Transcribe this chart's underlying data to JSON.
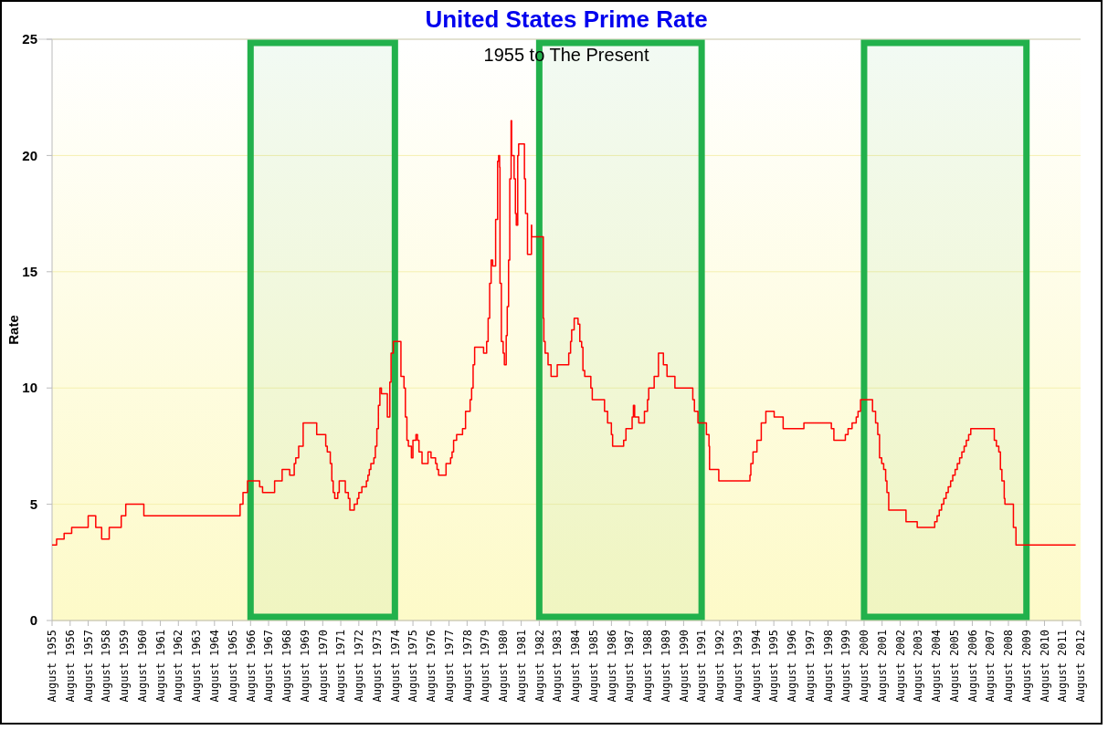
{
  "chart_data": {
    "type": "step",
    "title": "United States Prime Rate",
    "subtitle": "1955 to The Present",
    "ylabel": "Rate",
    "x": [
      "1955-08",
      "1955-11",
      "1956-04",
      "1956-09",
      "1957-08",
      "1958-01",
      "1958-05",
      "1958-10",
      "1959-06",
      "1959-09",
      "1960-09",
      "1966-01",
      "1966-03",
      "1966-06",
      "1967-02",
      "1967-04",
      "1967-12",
      "1968-05",
      "1968-10",
      "1969-01",
      "1969-02",
      "1969-04",
      "1969-07",
      "1970-04",
      "1970-10",
      "1970-11",
      "1971-01",
      "1971-02",
      "1971-03",
      "1971-04",
      "1971-06",
      "1971-07",
      "1971-11",
      "1972-01",
      "1972-02",
      "1972-05",
      "1972-07",
      "1972-08",
      "1972-10",
      "1973-01",
      "1973-02",
      "1973-03",
      "1973-04",
      "1973-06",
      "1973-07",
      "1973-08",
      "1973-09",
      "1973-10",
      "1973-11",
      "1974-03",
      "1974-04-20",
      "1974-05-15",
      "1974-07",
      "1974-12",
      "1975-02",
      "1975-03",
      "1975-04",
      "1975-05",
      "1975-07",
      "1975-08",
      "1975-10",
      "1975-11",
      "1975-12",
      "1976-02",
      "1976-06",
      "1976-08",
      "1976-11",
      "1976-12",
      "1977-01",
      "1977-06",
      "1977-09",
      "1977-10",
      "1977-11",
      "1978-01",
      "1978-05",
      "1978-07",
      "1978-10",
      "1978-11",
      "1978-12",
      "1979-01",
      "1979-07",
      "1979-09",
      "1979-10",
      "1979-11",
      "1979-12",
      "1980-01",
      "1980-03-01",
      "1980-04-10",
      "1980-05-01",
      "1980-05-20",
      "1980-05-28",
      "1980-06-25",
      "1980-07-31",
      "1980-08-25",
      "1980-10-01",
      "1980-10-22",
      "1980-11-18",
      "1980-12-12",
      "1981-01-08",
      "1981-01-19",
      "1981-03-10",
      "1981-04-05",
      "1981-04-23",
      "1981-05-22",
      "1981-06-10",
      "1981-10-05",
      "1981-10-27",
      "1981-12-06",
      "1982-02-24",
      "1982-02-28",
      "1982-10-22",
      "1982-11-02",
      "1982-11-28",
      "1983-01-26",
      "1983-03-28",
      "1983-07-31",
      "1984-03-20",
      "1984-04-26",
      "1984-05-18",
      "1984-07-08",
      "1984-09-24",
      "1984-10-30",
      "1984-12-06",
      "1985-01-01",
      "1985-02-06",
      "1985-06-10",
      "1985-07-09",
      "1986-03-14",
      "1986-05-15",
      "1986-07-31",
      "1986-08-25",
      "1987-04-05",
      "1987-05-22",
      "1987-09-24",
      "1987-10-20",
      "1987-11-14",
      "1988-02-06",
      "1988-05-30",
      "1988-07-31",
      "1988-08-25",
      "1988-12-13",
      "1989-03-10",
      "1989-06-18",
      "1989-08-30",
      "1990-02-06",
      "1991-02-03",
      "1991-03-08",
      "1991-05-18",
      "1991-11-06",
      "1991-12-28",
      "1992-01-08",
      "1992-07-13",
      "1994-04-05",
      "1994-04-23",
      "1994-06-06",
      "1994-08-25",
      "1994-11-20",
      "1995-02-21",
      "1995-08-08",
      "1996-02-06",
      "1997-04-01",
      "1998-10-09",
      "1998-11-29",
      "1999-07-19",
      "1999-09-12",
      "1999-12-02",
      "2000-02-24",
      "2000-04-01",
      "2000-05-22",
      "2001-01-19",
      "2001-03-22",
      "2001-05-05",
      "2001-06-10",
      "2001-07-24",
      "2001-09-02",
      "2001-10-12",
      "2001-11-07",
      "2001-12-13",
      "2002-11-28",
      "2003-07-13",
      "2004-07-01",
      "2004-08-18",
      "2004-10-01",
      "2004-11-17",
      "2005-01-01",
      "2005-02-17",
      "2005-04-01",
      "2005-05-19",
      "2005-07-01",
      "2005-08-18",
      "2005-10-01",
      "2005-11-17",
      "2006-01-01",
      "2006-02-17",
      "2006-04-01",
      "2006-05-19",
      "2006-07-01",
      "2007-10-20",
      "2007-12-02",
      "2008-01-19",
      "2008-02-21",
      "2008-03-22",
      "2008-05-08",
      "2008-05-22",
      "2008-11-10",
      "2009-01-01",
      "2012-04-23"
    ],
    "values": [
      3.25,
      3.5,
      3.75,
      4.0,
      4.5,
      4.0,
      3.5,
      4.0,
      4.5,
      5.0,
      4.5,
      5.0,
      5.5,
      6.0,
      5.75,
      5.5,
      6.0,
      6.5,
      6.25,
      6.75,
      7.0,
      7.5,
      8.5,
      8.0,
      7.5,
      7.25,
      6.75,
      6.0,
      5.5,
      5.25,
      5.5,
      6.0,
      5.5,
      5.25,
      4.75,
      5.0,
      5.25,
      5.5,
      5.75,
      6.0,
      6.25,
      6.5,
      6.75,
      7.0,
      7.5,
      8.25,
      9.25,
      10.0,
      9.75,
      8.75,
      10.25,
      11.5,
      12.0,
      10.5,
      10.0,
      8.75,
      7.75,
      7.5,
      7.0,
      7.75,
      8.0,
      7.75,
      7.25,
      6.75,
      7.25,
      7.0,
      6.75,
      6.5,
      6.25,
      6.75,
      7.0,
      7.25,
      7.75,
      8.0,
      8.25,
      9.0,
      9.5,
      10.0,
      11.0,
      11.75,
      11.5,
      12.0,
      13.0,
      14.5,
      15.5,
      15.25,
      17.25,
      19.75,
      20.0,
      19.5,
      14.5,
      12.0,
      11.5,
      11.0,
      12.25,
      13.5,
      15.5,
      19.0,
      21.5,
      20.0,
      19.0,
      17.5,
      17.0,
      20.0,
      20.5,
      19.0,
      17.5,
      15.75,
      17.0,
      16.5,
      13.0,
      12.0,
      11.5,
      11.0,
      10.5,
      11.0,
      11.5,
      12.0,
      12.5,
      13.0,
      12.75,
      12.0,
      11.75,
      10.75,
      10.5,
      10.0,
      9.5,
      9.0,
      8.5,
      8.0,
      7.5,
      7.75,
      8.25,
      8.75,
      9.25,
      8.75,
      8.5,
      9.0,
      9.5,
      10.0,
      10.5,
      11.5,
      11.0,
      10.5,
      10.0,
      9.5,
      9.0,
      8.5,
      8.0,
      7.5,
      6.5,
      6.0,
      6.25,
      6.75,
      7.25,
      7.75,
      8.5,
      9.0,
      8.75,
      8.25,
      8.5,
      8.25,
      7.75,
      8.0,
      8.25,
      8.5,
      8.75,
      9.0,
      9.5,
      9.0,
      8.5,
      8.0,
      7.0,
      6.75,
      6.5,
      6.0,
      5.5,
      4.75,
      4.25,
      4.0,
      4.25,
      4.5,
      4.75,
      5.0,
      5.25,
      5.5,
      5.75,
      6.0,
      6.25,
      6.5,
      6.75,
      7.0,
      7.25,
      7.5,
      7.75,
      8.0,
      8.25,
      7.75,
      7.5,
      7.25,
      6.5,
      6.0,
      5.25,
      5.0,
      4.0,
      3.25,
      3.25
    ],
    "color": "#ff0000",
    "marker": "none",
    "line_style": "solid",
    "grid": "y",
    "xlim": [
      "1955-08",
      "2012-08"
    ],
    "xticks": [
      {
        "value": "1955-08",
        "label": "August 1955"
      },
      {
        "value": "1956-08",
        "label": "August 1956"
      },
      {
        "value": "1957-08",
        "label": "August 1957"
      },
      {
        "value": "1958-08",
        "label": "August 1958"
      },
      {
        "value": "1959-08",
        "label": "August 1959"
      },
      {
        "value": "1960-08",
        "label": "August 1960"
      },
      {
        "value": "1961-08",
        "label": "August 1961"
      },
      {
        "value": "1962-08",
        "label": "August 1962"
      },
      {
        "value": "1963-08",
        "label": "August 1963"
      },
      {
        "value": "1964-08",
        "label": "August 1964"
      },
      {
        "value": "1965-08",
        "label": "August 1965"
      },
      {
        "value": "1966-08",
        "label": "August 1966"
      },
      {
        "value": "1967-08",
        "label": "August 1967"
      },
      {
        "value": "1968-08",
        "label": "August 1968"
      },
      {
        "value": "1969-08",
        "label": "August 1969"
      },
      {
        "value": "1970-08",
        "label": "August 1970"
      },
      {
        "value": "1971-08",
        "label": "August 1971"
      },
      {
        "value": "1972-08",
        "label": "August 1972"
      },
      {
        "value": "1973-08",
        "label": "August 1973"
      },
      {
        "value": "1974-08",
        "label": "August 1974"
      },
      {
        "value": "1975-08",
        "label": "August 1975"
      },
      {
        "value": "1976-08",
        "label": "August 1976"
      },
      {
        "value": "1977-08",
        "label": "August 1977"
      },
      {
        "value": "1978-08",
        "label": "August 1978"
      },
      {
        "value": "1979-08",
        "label": "August 1979"
      },
      {
        "value": "1980-08",
        "label": "August 1980"
      },
      {
        "value": "1981-08",
        "label": "August 1981"
      },
      {
        "value": "1982-08",
        "label": "August 1982"
      },
      {
        "value": "1983-08",
        "label": "August 1983"
      },
      {
        "value": "1984-08",
        "label": "August 1984"
      },
      {
        "value": "1985-08",
        "label": "August 1985"
      },
      {
        "value": "1986-08",
        "label": "August 1986"
      },
      {
        "value": "1987-08",
        "label": "August 1987"
      },
      {
        "value": "1988-08",
        "label": "August 1988"
      },
      {
        "value": "1989-08",
        "label": "August 1989"
      },
      {
        "value": "1990-08",
        "label": "August 1990"
      },
      {
        "value": "1991-08",
        "label": "August 1991"
      },
      {
        "value": "1992-08",
        "label": "August 1992"
      },
      {
        "value": "1993-08",
        "label": "August 1993"
      },
      {
        "value": "1994-08",
        "label": "August 1994"
      },
      {
        "value": "1995-08",
        "label": "August 1995"
      },
      {
        "value": "1996-08",
        "label": "August 1996"
      },
      {
        "value": "1997-08",
        "label": "August 1997"
      },
      {
        "value": "1998-08",
        "label": "August 1998"
      },
      {
        "value": "1999-08",
        "label": "August 1999"
      },
      {
        "value": "2000-08",
        "label": "August 2000"
      },
      {
        "value": "2001-08",
        "label": "August 2001"
      },
      {
        "value": "2002-08",
        "label": "August 2002"
      },
      {
        "value": "2003-08",
        "label": "August 2003"
      },
      {
        "value": "2004-08",
        "label": "August 2004"
      },
      {
        "value": "2005-08",
        "label": "August 2005"
      },
      {
        "value": "2006-08",
        "label": "August 2006"
      },
      {
        "value": "2007-08",
        "label": "August 2007"
      },
      {
        "value": "2008-08",
        "label": "August 2008"
      },
      {
        "value": "2009-08",
        "label": "August 2009"
      },
      {
        "value": "2010-08",
        "label": "August 2010"
      },
      {
        "value": "2011-08",
        "label": "August 2011"
      },
      {
        "value": "2012-08",
        "label": "August 2012"
      }
    ],
    "ylim": [
      0,
      25
    ],
    "yticks": [
      0,
      5,
      10,
      15,
      20,
      25
    ],
    "bands": [
      {
        "axis": "x",
        "from": "1966-08",
        "to": "1974-08",
        "color": "#22b14c"
      },
      {
        "axis": "x",
        "from": "1982-08",
        "to": "1991-08",
        "color": "#22b14c"
      },
      {
        "axis": "x",
        "from": "2000-08",
        "to": "2009-08",
        "color": "#22b14c"
      }
    ]
  }
}
